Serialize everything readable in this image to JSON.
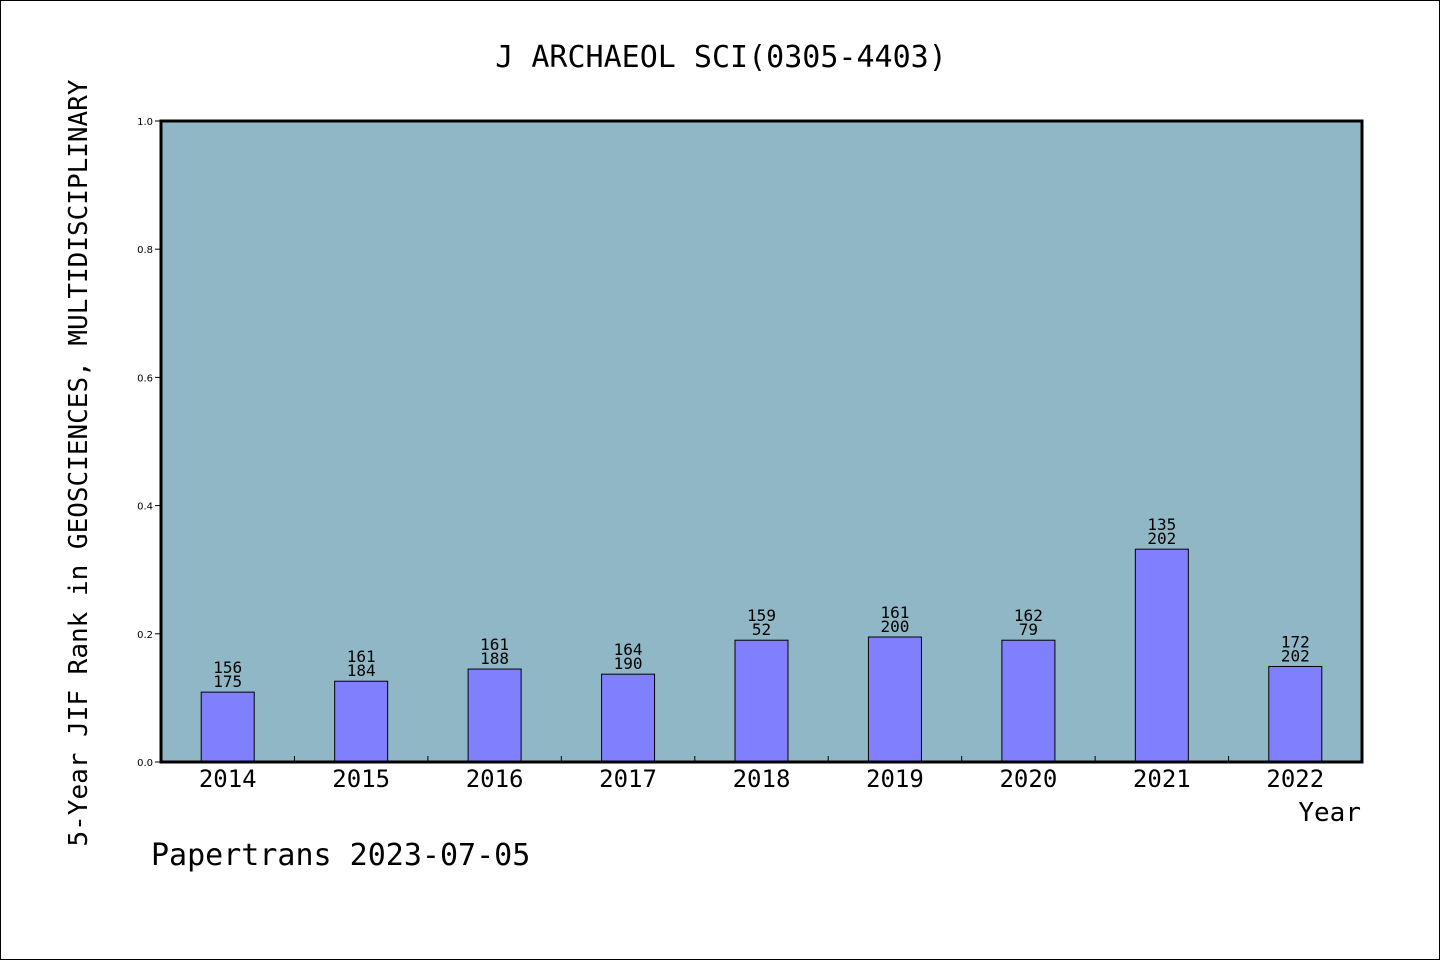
{
  "chart_data": {
    "type": "bar",
    "title": "J ARCHAEOL SCI(0305-4403)",
    "xlabel": "Year",
    "ylabel": "5-Year JIF Rank in GEOSCIENCES, MULTIDISCIPLINARY",
    "footer": "Papertrans 2023-07-05",
    "categories": [
      "2014",
      "2015",
      "2016",
      "2017",
      "2018",
      "2019",
      "2020",
      "2021",
      "2022"
    ],
    "values": [
      0.109,
      0.126,
      0.145,
      0.137,
      0.19,
      0.195,
      0.19,
      0.332,
      0.149
    ],
    "bar_labels_top": [
      "156",
      "161",
      "161",
      "164",
      "159",
      "161",
      "162",
      "135",
      "172"
    ],
    "bar_labels_bottom": [
      "175",
      "184",
      "188",
      "190",
      "52",
      "200",
      "79",
      "202",
      "202"
    ],
    "ylim": [
      0,
      1.0
    ],
    "yticks": [
      "0.0",
      "0.2",
      "0.4",
      "0.6",
      "0.8",
      "1.0"
    ],
    "grid": false,
    "legend": "none",
    "colors": {
      "plot_background": "#8fb7c5",
      "bar_fill": "#8080ff",
      "bar_stroke": "#000000",
      "axis": "#000000",
      "text": "#000000"
    }
  }
}
